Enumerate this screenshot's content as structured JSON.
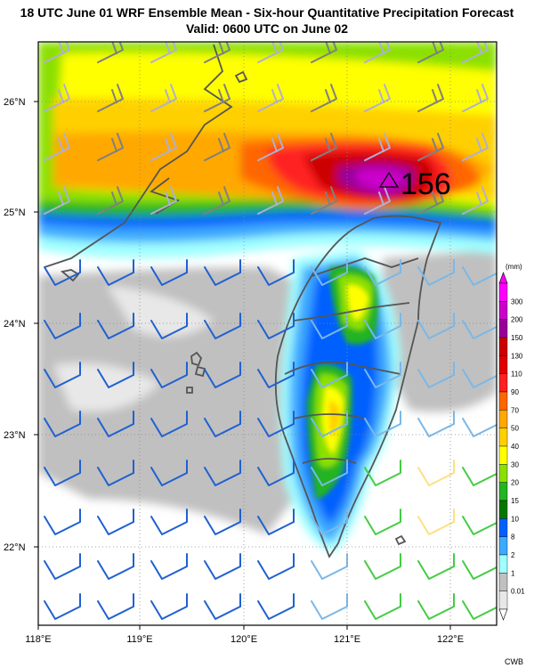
{
  "title": {
    "line1": "18 UTC June 01 WRF Ensemble Mean - Six-hour Quantitative Precipitation Forecast",
    "line2": "Valid: 0600 UTC on June 02"
  },
  "map": {
    "max_marker_value": "156",
    "lat_labels": [
      "26°N",
      "25°N",
      "24°N",
      "23°N",
      "22°N"
    ],
    "lon_labels": [
      "118°E",
      "119°E",
      "120°E",
      "121°E",
      "122°E"
    ]
  },
  "legend": {
    "unit": "(mm)",
    "levels": [
      "300",
      "200",
      "150",
      "130",
      "110",
      "90",
      "70",
      "50",
      "40",
      "30",
      "20",
      "15",
      "10",
      "8",
      "2",
      "1",
      "0.01"
    ],
    "colors": [
      "#ff00ff",
      "#cc00cc",
      "#990099",
      "#cc0000",
      "#e00000",
      "#ff2020",
      "#ff6600",
      "#ffa800",
      "#ffd000",
      "#ffff00",
      "#8be000",
      "#22b422",
      "#007800",
      "#0060ff",
      "#3caaff",
      "#a0ffff",
      "#c0c0c0",
      "#e8e8e8"
    ]
  },
  "credit": "CWB"
}
